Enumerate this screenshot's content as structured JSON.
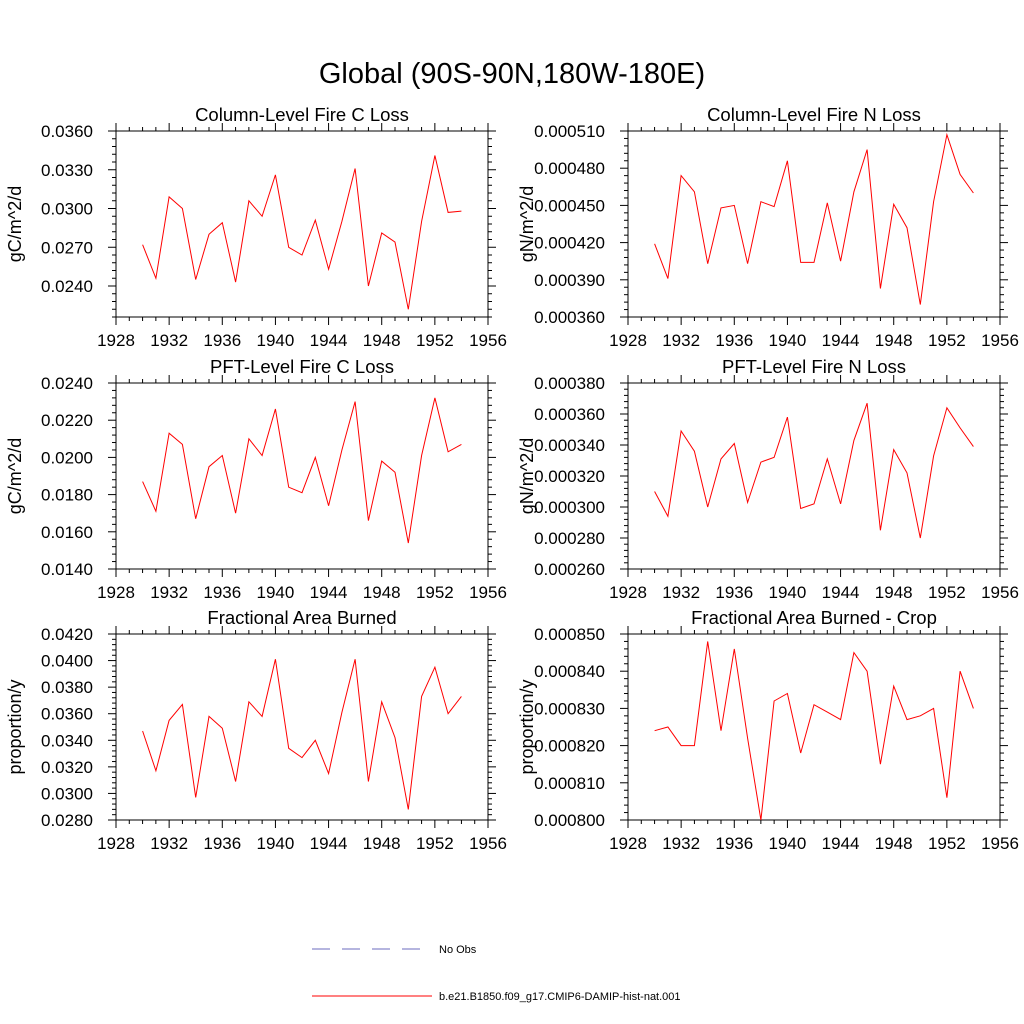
{
  "title": "Global (90S-90N,180W-180E)",
  "legend": {
    "entries": [
      {
        "label": "No Obs",
        "color": "#6b6bbf",
        "style": "dashed"
      },
      {
        "label": "b.e21.B1850.f09_g17.CMIP6-DAMIP-hist-nat.001",
        "color": "#ff0000",
        "style": "solid"
      }
    ]
  },
  "chart_data": [
    {
      "type": "line",
      "title": "Column-Level Fire C Loss",
      "ylabel": "gC/m^2/d",
      "xlim": [
        1928,
        1956
      ],
      "ylim": [
        0.0216,
        0.036
      ],
      "xticks": [
        "1928",
        "1932",
        "1936",
        "1940",
        "1944",
        "1948",
        "1952",
        "1956"
      ],
      "yticks": [
        "0.0240",
        "0.0270",
        "0.0300",
        "0.0330",
        "0.0360"
      ],
      "x": [
        1930,
        1931,
        1932,
        1933,
        1934,
        1935,
        1936,
        1937,
        1938,
        1939,
        1940,
        1941,
        1942,
        1943,
        1944,
        1945,
        1946,
        1947,
        1948,
        1949,
        1950,
        1951,
        1952,
        1953,
        1954
      ],
      "series": [
        {
          "color": "#ff0000",
          "values": [
            0.0272,
            0.0246,
            0.0309,
            0.03,
            0.0245,
            0.028,
            0.0289,
            0.0243,
            0.0306,
            0.0294,
            0.0326,
            0.027,
            0.0264,
            0.0291,
            0.0253,
            0.029,
            0.0331,
            0.024,
            0.0281,
            0.0274,
            0.0222,
            0.029,
            0.0341,
            0.0297,
            0.0298
          ]
        }
      ]
    },
    {
      "type": "line",
      "title": "Column-Level Fire N Loss",
      "ylabel": "gN/m^2/d",
      "xlim": [
        1928,
        1956
      ],
      "ylim": [
        0.00036,
        0.00051
      ],
      "xticks": [
        "1928",
        "1932",
        "1936",
        "1940",
        "1944",
        "1948",
        "1952",
        "1956"
      ],
      "yticks": [
        "0.000360",
        "0.000390",
        "0.000420",
        "0.000450",
        "0.000480",
        "0.000510"
      ],
      "x": [
        1930,
        1931,
        1932,
        1933,
        1934,
        1935,
        1936,
        1937,
        1938,
        1939,
        1940,
        1941,
        1942,
        1943,
        1944,
        1945,
        1946,
        1947,
        1948,
        1949,
        1950,
        1951,
        1952,
        1953,
        1954
      ],
      "series": [
        {
          "color": "#ff0000",
          "values": [
            0.000419,
            0.000391,
            0.000474,
            0.000461,
            0.000403,
            0.000448,
            0.00045,
            0.000403,
            0.000453,
            0.000449,
            0.000486,
            0.000404,
            0.000404,
            0.000452,
            0.000405,
            0.000461,
            0.000495,
            0.000383,
            0.000451,
            0.000432,
            0.00037,
            0.000453,
            0.000507,
            0.000475,
            0.00046
          ]
        }
      ]
    },
    {
      "type": "line",
      "title": "PFT-Level Fire C Loss",
      "ylabel": "gC/m^2/d",
      "xlim": [
        1928,
        1956
      ],
      "ylim": [
        0.014,
        0.024
      ],
      "xticks": [
        "1928",
        "1932",
        "1936",
        "1940",
        "1944",
        "1948",
        "1952",
        "1956"
      ],
      "yticks": [
        "0.0140",
        "0.0160",
        "0.0180",
        "0.0200",
        "0.0220",
        "0.0240"
      ],
      "x": [
        1930,
        1931,
        1932,
        1933,
        1934,
        1935,
        1936,
        1937,
        1938,
        1939,
        1940,
        1941,
        1942,
        1943,
        1944,
        1945,
        1946,
        1947,
        1948,
        1949,
        1950,
        1951,
        1952,
        1953,
        1954
      ],
      "series": [
        {
          "color": "#ff0000",
          "values": [
            0.0187,
            0.0171,
            0.0213,
            0.0207,
            0.0167,
            0.0195,
            0.0201,
            0.017,
            0.021,
            0.0201,
            0.0226,
            0.0184,
            0.0181,
            0.02,
            0.0174,
            0.0204,
            0.023,
            0.0166,
            0.0198,
            0.0192,
            0.0154,
            0.0201,
            0.0232,
            0.0203,
            0.0207
          ]
        }
      ]
    },
    {
      "type": "line",
      "title": "PFT-Level Fire N Loss",
      "ylabel": "gN/m^2/d",
      "xlim": [
        1928,
        1956
      ],
      "ylim": [
        0.00026,
        0.00038
      ],
      "xticks": [
        "1928",
        "1932",
        "1936",
        "1940",
        "1944",
        "1948",
        "1952",
        "1956"
      ],
      "yticks": [
        "0.000260",
        "0.000280",
        "0.000300",
        "0.000320",
        "0.000340",
        "0.000360",
        "0.000380"
      ],
      "x": [
        1930,
        1931,
        1932,
        1933,
        1934,
        1935,
        1936,
        1937,
        1938,
        1939,
        1940,
        1941,
        1942,
        1943,
        1944,
        1945,
        1946,
        1947,
        1948,
        1949,
        1950,
        1951,
        1952,
        1953,
        1954
      ],
      "series": [
        {
          "color": "#ff0000",
          "values": [
            0.00031,
            0.000294,
            0.000349,
            0.000336,
            0.0003,
            0.000331,
            0.000341,
            0.000303,
            0.000329,
            0.000332,
            0.000358,
            0.000299,
            0.000302,
            0.000331,
            0.000302,
            0.000343,
            0.000367,
            0.000285,
            0.000337,
            0.000322,
            0.00028,
            0.000333,
            0.000364,
            0.000351,
            0.000339
          ]
        }
      ]
    },
    {
      "type": "line",
      "title": "Fractional Area Burned",
      "ylabel": "proportion/y",
      "xlim": [
        1928,
        1956
      ],
      "ylim": [
        0.028,
        0.042
      ],
      "xticks": [
        "1928",
        "1932",
        "1936",
        "1940",
        "1944",
        "1948",
        "1952",
        "1956"
      ],
      "yticks": [
        "0.0280",
        "0.0300",
        "0.0320",
        "0.0340",
        "0.0360",
        "0.0380",
        "0.0400",
        "0.0420"
      ],
      "x": [
        1930,
        1931,
        1932,
        1933,
        1934,
        1935,
        1936,
        1937,
        1938,
        1939,
        1940,
        1941,
        1942,
        1943,
        1944,
        1945,
        1946,
        1947,
        1948,
        1949,
        1950,
        1951,
        1952,
        1953,
        1954
      ],
      "series": [
        {
          "color": "#ff0000",
          "values": [
            0.0347,
            0.0317,
            0.0355,
            0.0367,
            0.0297,
            0.0358,
            0.0349,
            0.0309,
            0.0369,
            0.0358,
            0.0401,
            0.0334,
            0.0327,
            0.034,
            0.0315,
            0.0361,
            0.0401,
            0.0309,
            0.0369,
            0.0342,
            0.0288,
            0.0373,
            0.0395,
            0.036,
            0.0373
          ]
        }
      ]
    },
    {
      "type": "line",
      "title": "Fractional Area Burned - Crop",
      "ylabel": "proportion/y",
      "xlim": [
        1928,
        1956
      ],
      "ylim": [
        0.0008,
        0.00085
      ],
      "xticks": [
        "1928",
        "1932",
        "1936",
        "1940",
        "1944",
        "1948",
        "1952",
        "1956"
      ],
      "yticks": [
        "0.000800",
        "0.000810",
        "0.000820",
        "0.000830",
        "0.000840",
        "0.000850"
      ],
      "x": [
        1930,
        1931,
        1932,
        1933,
        1934,
        1935,
        1936,
        1937,
        1938,
        1939,
        1940,
        1941,
        1942,
        1943,
        1944,
        1945,
        1946,
        1947,
        1948,
        1949,
        1950,
        1951,
        1952,
        1953,
        1954
      ],
      "series": [
        {
          "color": "#ff0000",
          "values": [
            0.000824,
            0.000825,
            0.00082,
            0.00082,
            0.000848,
            0.000824,
            0.000846,
            0.000822,
            0.0008,
            0.000832,
            0.000834,
            0.000818,
            0.000831,
            0.000829,
            0.000827,
            0.000845,
            0.00084,
            0.000815,
            0.000836,
            0.000827,
            0.000828,
            0.00083,
            0.000806,
            0.00084,
            0.00083
          ]
        }
      ]
    }
  ]
}
